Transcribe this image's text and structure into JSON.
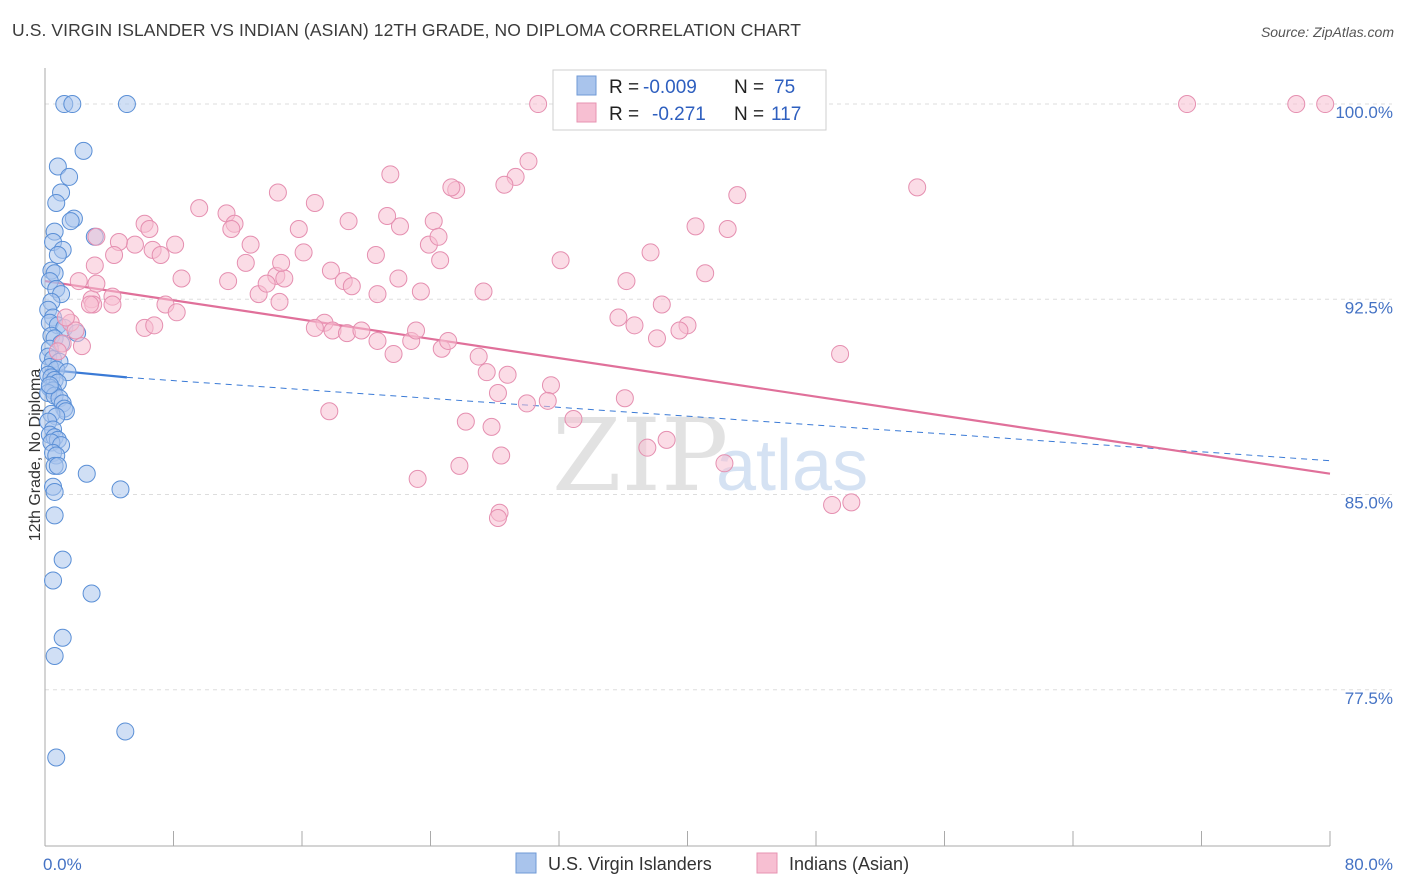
{
  "title": "U.S. VIRGIN ISLANDER VS INDIAN (ASIAN) 12TH GRADE, NO DIPLOMA CORRELATION CHART",
  "source": "Source: ZipAtlas.com",
  "watermark": {
    "zip": "ZIP",
    "atlas": "atlas"
  },
  "legend": {
    "r_label": "R =",
    "n_label": "N =",
    "series": [
      {
        "r": "-0.009",
        "n": "75",
        "color": "#a9c4ec",
        "stroke": "#6f9ad6"
      },
      {
        "r": "-0.271",
        "n": "117",
        "color": "#f7bfd2",
        "stroke": "#e793b2"
      }
    ]
  },
  "bottom_legend": [
    "U.S. Virgin Islanders",
    "Indians (Asian)"
  ],
  "chart_data": {
    "type": "scatter",
    "xlabel": "",
    "ylabel": "12th Grade, No Diploma",
    "xlim": [
      0,
      80
    ],
    "ylim": [
      71.5,
      101
    ],
    "x_tick_labels": [
      "0.0%",
      "80.0%"
    ],
    "y_ticks": [
      77.5,
      85.0,
      92.5,
      100.0
    ],
    "y_tick_labels": [
      "77.5%",
      "85.0%",
      "92.5%",
      "100.0%"
    ],
    "grid": true,
    "legend_position": "top-center",
    "series": [
      {
        "name": "U.S. Virgin Islanders",
        "color": "#a9c4ec",
        "stroke": "#5a8fd6",
        "points": [
          [
            1.2,
            100
          ],
          [
            1.7,
            100
          ],
          [
            5.1,
            100
          ],
          [
            2.4,
            98.2
          ],
          [
            0.8,
            97.6
          ],
          [
            1.5,
            97.2
          ],
          [
            1.0,
            96.6
          ],
          [
            0.7,
            96.2
          ],
          [
            1.8,
            95.6
          ],
          [
            1.6,
            95.5
          ],
          [
            0.6,
            95.1
          ],
          [
            3.1,
            94.9
          ],
          [
            0.5,
            94.7
          ],
          [
            1.1,
            94.4
          ],
          [
            0.8,
            94.2
          ],
          [
            0.4,
            93.6
          ],
          [
            0.6,
            93.5
          ],
          [
            0.3,
            93.2
          ],
          [
            0.7,
            92.9
          ],
          [
            1.0,
            92.7
          ],
          [
            0.4,
            92.4
          ],
          [
            0.2,
            92.1
          ],
          [
            0.5,
            91.8
          ],
          [
            0.3,
            91.6
          ],
          [
            0.8,
            91.5
          ],
          [
            1.2,
            91.4
          ],
          [
            2.0,
            91.2
          ],
          [
            0.4,
            91.1
          ],
          [
            0.6,
            91.0
          ],
          [
            1.0,
            90.8
          ],
          [
            0.3,
            90.6
          ],
          [
            0.2,
            90.3
          ],
          [
            0.5,
            90.2
          ],
          [
            0.9,
            90.1
          ],
          [
            0.3,
            89.9
          ],
          [
            0.7,
            89.8
          ],
          [
            1.4,
            89.7
          ],
          [
            0.2,
            89.6
          ],
          [
            0.4,
            89.5
          ],
          [
            0.6,
            89.4
          ],
          [
            0.8,
            89.3
          ],
          [
            0.3,
            89.1
          ],
          [
            0.5,
            89.0
          ],
          [
            0.2,
            88.9
          ],
          [
            0.6,
            88.8
          ],
          [
            0.9,
            88.7
          ],
          [
            1.1,
            88.5
          ],
          [
            1.2,
            88.3
          ],
          [
            1.3,
            88.2
          ],
          [
            0.4,
            88.1
          ],
          [
            0.7,
            88.0
          ],
          [
            0.2,
            87.8
          ],
          [
            0.5,
            87.5
          ],
          [
            0.3,
            87.3
          ],
          [
            0.6,
            87.2
          ],
          [
            0.8,
            87.1
          ],
          [
            0.4,
            87.0
          ],
          [
            1.0,
            86.9
          ],
          [
            0.5,
            86.6
          ],
          [
            0.7,
            86.5
          ],
          [
            0.6,
            86.1
          ],
          [
            0.8,
            86.1
          ],
          [
            2.6,
            85.8
          ],
          [
            0.5,
            85.3
          ],
          [
            0.6,
            85.1
          ],
          [
            4.7,
            85.2
          ],
          [
            0.6,
            84.2
          ],
          [
            1.1,
            82.5
          ],
          [
            0.5,
            81.7
          ],
          [
            2.9,
            81.2
          ],
          [
            1.1,
            79.5
          ],
          [
            0.6,
            78.8
          ],
          [
            5.0,
            75.9
          ],
          [
            0.7,
            74.9
          ],
          [
            0.3,
            89.2
          ]
        ]
      },
      {
        "name": "Indians (Asian)",
        "color": "#f7bfd2",
        "stroke": "#e58fb0",
        "points": [
          [
            30.7,
            100
          ],
          [
            71.1,
            100
          ],
          [
            77.9,
            100
          ],
          [
            79.7,
            100
          ],
          [
            30.1,
            97.8
          ],
          [
            29.3,
            97.2
          ],
          [
            21.5,
            97.3
          ],
          [
            54.3,
            96.8
          ],
          [
            14.5,
            96.6
          ],
          [
            16.8,
            96.2
          ],
          [
            18.9,
            95.5
          ],
          [
            11.3,
            95.8
          ],
          [
            11.8,
            95.4
          ],
          [
            9.6,
            96.0
          ],
          [
            6.2,
            95.4
          ],
          [
            6.5,
            95.2
          ],
          [
            5.6,
            94.6
          ],
          [
            8.1,
            94.6
          ],
          [
            11.6,
            95.2
          ],
          [
            12.8,
            94.6
          ],
          [
            15.8,
            95.2
          ],
          [
            6.7,
            94.4
          ],
          [
            7.2,
            94.2
          ],
          [
            12.5,
            93.9
          ],
          [
            3.2,
            94.9
          ],
          [
            4.6,
            94.7
          ],
          [
            4.3,
            94.2
          ],
          [
            3.1,
            93.8
          ],
          [
            2.9,
            92.5
          ],
          [
            3.2,
            93.1
          ],
          [
            2.1,
            93.2
          ],
          [
            4.2,
            92.6
          ],
          [
            8.5,
            93.3
          ],
          [
            11.4,
            93.2
          ],
          [
            13.3,
            92.7
          ],
          [
            14.4,
            93.4
          ],
          [
            14.9,
            93.3
          ],
          [
            17.8,
            93.6
          ],
          [
            18.6,
            93.2
          ],
          [
            19.1,
            93.0
          ],
          [
            20.7,
            92.7
          ],
          [
            23.4,
            92.8
          ],
          [
            22.0,
            93.3
          ],
          [
            20.6,
            94.2
          ],
          [
            16.1,
            94.3
          ],
          [
            14.7,
            93.9
          ],
          [
            13.8,
            93.1
          ],
          [
            14.6,
            92.4
          ],
          [
            7.5,
            92.3
          ],
          [
            8.2,
            92.0
          ],
          [
            6.2,
            91.4
          ],
          [
            6.8,
            91.5
          ],
          [
            4.2,
            92.3
          ],
          [
            3.0,
            92.3
          ],
          [
            2.8,
            92.3
          ],
          [
            1.6,
            91.6
          ],
          [
            1.9,
            91.3
          ],
          [
            1.3,
            91.8
          ],
          [
            1.1,
            90.8
          ],
          [
            2.3,
            90.7
          ],
          [
            0.8,
            90.5
          ],
          [
            17.4,
            91.6
          ],
          [
            17.9,
            91.3
          ],
          [
            16.8,
            91.4
          ],
          [
            18.8,
            91.2
          ],
          [
            19.7,
            91.3
          ],
          [
            20.7,
            90.9
          ],
          [
            21.7,
            90.4
          ],
          [
            22.8,
            90.9
          ],
          [
            23.1,
            91.3
          ],
          [
            24.7,
            90.6
          ],
          [
            25.1,
            90.9
          ],
          [
            27.3,
            92.8
          ],
          [
            24.6,
            94.0
          ],
          [
            23.9,
            94.6
          ],
          [
            22.1,
            95.3
          ],
          [
            21.3,
            95.7
          ],
          [
            25.6,
            96.7
          ],
          [
            28.6,
            96.9
          ],
          [
            25.3,
            96.8
          ],
          [
            24.2,
            95.5
          ],
          [
            24.5,
            94.9
          ],
          [
            27.0,
            90.3
          ],
          [
            27.5,
            89.7
          ],
          [
            28.8,
            89.6
          ],
          [
            28.2,
            88.9
          ],
          [
            31.5,
            89.2
          ],
          [
            31.3,
            88.6
          ],
          [
            30.0,
            88.5
          ],
          [
            26.2,
            87.8
          ],
          [
            27.8,
            87.6
          ],
          [
            28.4,
            86.5
          ],
          [
            37.7,
            94.3
          ],
          [
            36.2,
            93.2
          ],
          [
            36.7,
            91.5
          ],
          [
            40.0,
            91.5
          ],
          [
            39.5,
            91.3
          ],
          [
            38.1,
            91.0
          ],
          [
            35.7,
            91.8
          ],
          [
            41.1,
            93.5
          ],
          [
            32.1,
            94.0
          ],
          [
            42.5,
            95.2
          ],
          [
            40.5,
            95.3
          ],
          [
            43.1,
            96.5
          ],
          [
            38.4,
            92.3
          ],
          [
            49.5,
            90.4
          ],
          [
            50.2,
            84.7
          ],
          [
            49.0,
            84.6
          ],
          [
            28.3,
            84.3
          ],
          [
            38.7,
            87.1
          ],
          [
            37.5,
            86.8
          ],
          [
            42.3,
            86.2
          ],
          [
            25.8,
            86.1
          ],
          [
            23.2,
            85.6
          ],
          [
            36.1,
            88.7
          ],
          [
            32.9,
            87.9
          ],
          [
            28.2,
            84.1
          ],
          [
            17.7,
            88.2
          ]
        ]
      }
    ],
    "trend_lines": [
      {
        "series": "U.S. Virgin Islanders",
        "x": [
          0,
          5.1
        ],
        "y": [
          89.8,
          89.5
        ],
        "style": "solid"
      },
      {
        "series": "U.S. Virgin Islanders",
        "x": [
          5.1,
          80
        ],
        "y": [
          89.5,
          86.3
        ],
        "style": "dashed"
      },
      {
        "series": "Indians (Asian)",
        "x": [
          0,
          80
        ],
        "y": [
          93.2,
          85.8
        ],
        "style": "solid"
      }
    ]
  }
}
